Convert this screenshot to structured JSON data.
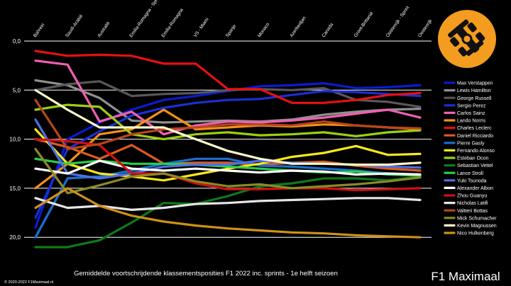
{
  "chart_data": {
    "type": "line",
    "title": "Gemiddelde voortschrijdende klassementsposities F1 2022 inc. sprints - 1e helft seizoen",
    "brand": "F1 Maximaal",
    "copyright": "© 2020-2022 F1Maximaal.nl",
    "categories": [
      "Bahrein",
      "Saudi-Arabië",
      "Australië",
      "Emilia-Romagna - Sprint",
      "Emilia-Romagna",
      "VS - Miami",
      "Spanje",
      "Monaco",
      "Azerbeidjan",
      "Canada",
      "Groot-Brittanië",
      "Oostenrijk - Sprint",
      "Oostenrijk"
    ],
    "y_ticks": [
      "0,0",
      "5,0",
      "10,0",
      "15,0",
      "20,0"
    ],
    "ylim": [
      0,
      21.5
    ],
    "y_inverted": true,
    "grid": true,
    "legend_position": "right",
    "logo": "helmet-car-icon",
    "logo_color": "#f39c1f",
    "series": [
      {
        "name": "Max Verstappen",
        "color": "#0a1ccf",
        "values": [
          19.0,
          10.0,
          8.3,
          7.0,
          6.0,
          5.6,
          5.1,
          4.6,
          4.5,
          4.3,
          4.8,
          4.7,
          4.5
        ]
      },
      {
        "name": "Lewis Hamilton",
        "color": "#909090",
        "values": [
          4.0,
          4.5,
          5.8,
          8.1,
          8.3,
          8.2,
          8.1,
          8.2,
          8.0,
          7.5,
          7.2,
          7.0,
          6.9
        ]
      },
      {
        "name": "George Russell",
        "color": "#585858",
        "values": [
          5.0,
          4.4,
          4.1,
          5.6,
          5.4,
          5.3,
          5.0,
          4.9,
          5.0,
          4.8,
          6.0,
          6.2,
          6.7
        ]
      },
      {
        "name": "Sergio Perez",
        "color": "#1a2fd6",
        "values": [
          18.0,
          11.0,
          9.2,
          7.6,
          6.8,
          6.3,
          6.0,
          5.9,
          5.5,
          5.1,
          5.2,
          5.4,
          5.6
        ]
      },
      {
        "name": "Carlos Sainz",
        "color": "#f060b0",
        "values": [
          2.0,
          2.4,
          8.2,
          7.2,
          9.5,
          8.6,
          8.2,
          8.3,
          8.1,
          7.8,
          7.4,
          7.0,
          7.8
        ]
      },
      {
        "name": "Lando Norris",
        "color": "#f5901a",
        "values": [
          15.0,
          12.5,
          9.5,
          9.0,
          7.0,
          9.0,
          8.8,
          8.6,
          8.7,
          8.5,
          8.6,
          8.8,
          9.0
        ]
      },
      {
        "name": "Charles Leclerc",
        "color": "#e81010",
        "values": [
          1.0,
          1.5,
          1.4,
          1.5,
          2.3,
          2.3,
          4.9,
          4.9,
          6.3,
          6.3,
          6.0,
          5.5,
          5.3
        ]
      },
      {
        "name": "Daniel Ricciardo",
        "color": "#e05a20",
        "values": [
          10.0,
          10.8,
          12.0,
          10.6,
          12.5,
          12.4,
          12.4,
          12.6,
          12.4,
          12.3,
          12.7,
          13.0,
          13.2
        ]
      },
      {
        "name": "Pierre Gasly",
        "color": "#1b6fd0",
        "values": [
          20.0,
          14.0,
          13.8,
          13.2,
          12.5,
          12.0,
          12.0,
          12.7,
          12.8,
          13.0,
          13.2,
          13.5,
          13.6
        ]
      },
      {
        "name": "Fernando Alonso",
        "color": "#f8e81a",
        "values": [
          9.0,
          12.5,
          13.5,
          13.8,
          14.2,
          13.6,
          13.0,
          12.5,
          11.8,
          11.4,
          10.7,
          11.6,
          11.5
        ]
      },
      {
        "name": "Esteban Ocon",
        "color": "#9ad010",
        "values": [
          7.0,
          6.5,
          6.7,
          9.5,
          10.0,
          9.5,
          9.3,
          9.6,
          9.5,
          9.3,
          9.7,
          9.3,
          9.1
        ]
      },
      {
        "name": "Sebastian Vettel",
        "color": "#0e7a18",
        "values": [
          21.0,
          21.0,
          20.3,
          18.5,
          16.5,
          16.6,
          15.8,
          14.8,
          14.5,
          14.0,
          14.0,
          14.2,
          13.8
        ]
      },
      {
        "name": "Lance Stroll",
        "color": "#28d048",
        "values": [
          12.0,
          12.5,
          12.2,
          12.5,
          12.5,
          12.6,
          12.8,
          13.0,
          13.2,
          13.4,
          13.3,
          13.6,
          13.7
        ]
      },
      {
        "name": "Yuki Tsunoda",
        "color": "#5070e0",
        "values": [
          8.0,
          13.5,
          14.0,
          13.5,
          12.8,
          12.6,
          12.6,
          12.2,
          12.4,
          12.5,
          12.6,
          12.8,
          12.9
        ]
      },
      {
        "name": "Alexander Albon",
        "color": "#ffffff",
        "values": [
          13.0,
          13.5,
          12.2,
          13.0,
          13.2,
          13.0,
          13.2,
          13.4,
          13.2,
          13.3,
          13.6,
          13.5,
          13.6
        ]
      },
      {
        "name": "Zhou Guanyu",
        "color": "#d01010",
        "values": [
          10.0,
          10.2,
          10.6,
          13.5,
          13.5,
          14.5,
          15.1,
          15.1,
          15.0,
          15.0,
          15.2,
          15.1,
          15.0
        ]
      },
      {
        "name": "Nicholas Latifi",
        "color": "#e6e6e6",
        "values": [
          16.0,
          17.0,
          16.8,
          17.2,
          17.0,
          16.6,
          16.5,
          16.3,
          16.2,
          16.1,
          16.0,
          16.0,
          16.2
        ]
      },
      {
        "name": "Valtteri Bottas",
        "color": "#b8461c",
        "values": [
          6.0,
          11.0,
          10.5,
          9.5,
          9.0,
          8.8,
          8.5,
          8.5,
          8.6,
          8.2,
          8.6,
          8.8,
          8.9
        ]
      },
      {
        "name": "Mick Schumacher",
        "color": "#8a8a28",
        "values": [
          11.0,
          15.5,
          14.7,
          13.8,
          13.5,
          14.3,
          14.8,
          14.6,
          15.0,
          14.8,
          14.6,
          14.3,
          13.9
        ]
      },
      {
        "name": "Kevin Magnussen",
        "color": "#fafac8",
        "values": [
          5.0,
          7.0,
          8.8,
          8.8,
          8.8,
          10.0,
          11.2,
          12.0,
          12.5,
          12.5,
          12.6,
          12.6,
          12.4
        ]
      },
      {
        "name": "Nico Hulkenberg",
        "color": "#d09018",
        "values": [
          17.0,
          15.0,
          16.8,
          17.8,
          18.4,
          18.8,
          19.1,
          19.3,
          19.5,
          19.6,
          19.8,
          19.9,
          20.0
        ]
      }
    ]
  }
}
